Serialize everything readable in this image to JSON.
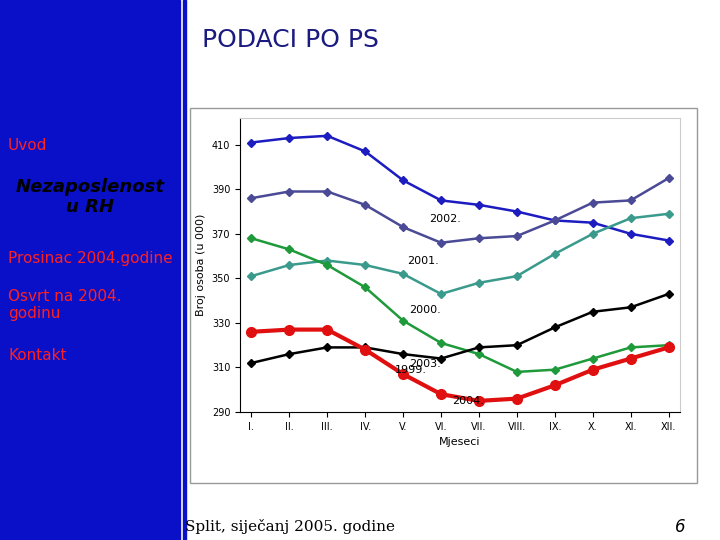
{
  "header": {
    "title": "PODACI PO PS"
  },
  "nav": [
    "Uvod",
    "Nezaposlenost\nu RH",
    "Prosinac 2004.godine",
    "Osvrt na 2004.\ngodinu",
    "Kontakt"
  ],
  "footer": {
    "text": "Split, siječanj 2005. godine",
    "page": "6"
  },
  "chart_data": {
    "type": "line",
    "ylabel": "Broj osoba (u 000)",
    "xlabel": "Mjeseci",
    "categories": [
      "I.",
      "II.",
      "III.",
      "IV.",
      "V.",
      "VI.",
      "VII.",
      "VIII.",
      "IX.",
      "X.",
      "XI.",
      "XII."
    ],
    "ylim": [
      290,
      422
    ],
    "yticks": [
      290,
      310,
      330,
      350,
      370,
      390,
      410
    ],
    "series": [
      {
        "name": "2002.",
        "color": "#1c1cc0",
        "marker": "diamond",
        "values": [
          411,
          413,
          414,
          407,
          394,
          385,
          383,
          380,
          376,
          375,
          370,
          367
        ]
      },
      {
        "name": "2001.",
        "color": "#4a4a96",
        "marker": "diamond",
        "values": [
          386,
          389,
          389,
          383,
          373,
          366,
          368,
          369,
          376,
          384,
          385,
          395
        ]
      },
      {
        "name": "2000.",
        "color": "#3a9a8c",
        "marker": "diamond",
        "values": [
          351,
          356,
          358,
          356,
          352,
          343,
          348,
          351,
          361,
          370,
          377,
          379
        ]
      },
      {
        "name": "2003.",
        "color": "#1e9a3a",
        "marker": "diamond",
        "values": [
          368,
          363,
          356,
          346,
          331,
          321,
          316,
          308,
          309,
          314,
          319,
          320
        ]
      },
      {
        "name": "1999.",
        "color": "#000000",
        "marker": "diamond",
        "values": [
          312,
          316,
          319,
          319,
          316,
          314,
          319,
          320,
          328,
          335,
          337,
          343
        ]
      },
      {
        "name": "2004.",
        "color": "#e01010",
        "marker": "circle",
        "values": [
          326,
          327,
          327,
          318,
          307,
          298,
          295,
          296,
          302,
          309,
          314,
          319
        ]
      }
    ]
  }
}
